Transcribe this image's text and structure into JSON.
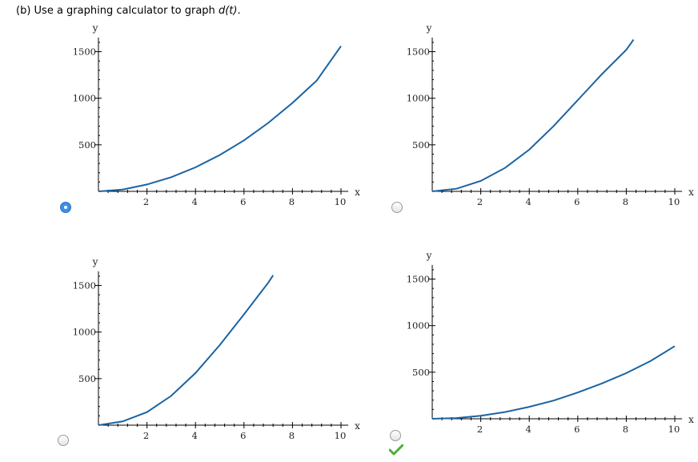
{
  "question": {
    "prefix": "(b) Use a graphing calculator to graph ",
    "func": "d(t)",
    "suffix": "."
  },
  "colors": {
    "curve": "#1a63a3",
    "radio_selected": "#3a90e8",
    "check": "#4caf3a"
  },
  "chart_data": [
    {
      "type": "line",
      "xlabel": "x",
      "ylabel": "y",
      "xlim": [
        0,
        10.3
      ],
      "ylim": [
        0,
        1600
      ],
      "x_ticks": [
        "2",
        "4",
        "6",
        "8",
        "10"
      ],
      "y_ticks": [
        "500",
        "1000",
        "1500"
      ],
      "series": [
        {
          "x": [
            0,
            1,
            2,
            3,
            4,
            5,
            6,
            7,
            8,
            9,
            10
          ],
          "y": [
            0,
            20,
            74,
            152,
            258,
            390,
            548,
            735,
            950,
            1190,
            1560
          ]
        }
      ],
      "selected": true
    },
    {
      "type": "line",
      "xlabel": "x",
      "ylabel": "y",
      "xlim": [
        0,
        10.3
      ],
      "ylim": [
        0,
        1600
      ],
      "x_ticks": [
        "2",
        "4",
        "6",
        "8",
        "10"
      ],
      "y_ticks": [
        "500",
        "1000",
        "1500"
      ],
      "series": [
        {
          "x": [
            0,
            1,
            2,
            3,
            4,
            5,
            6,
            7,
            8,
            8.3
          ],
          "y": [
            0,
            28,
            112,
            252,
            448,
            700,
            980,
            1260,
            1520,
            1630
          ]
        }
      ],
      "selected": false
    },
    {
      "type": "line",
      "xlabel": "x",
      "ylabel": "y",
      "xlim": [
        0,
        10.3
      ],
      "ylim": [
        0,
        1600
      ],
      "x_ticks": [
        "2",
        "4",
        "6",
        "8",
        "10"
      ],
      "y_ticks": [
        "500",
        "1000",
        "1500"
      ],
      "series": [
        {
          "x": [
            0,
            1,
            2,
            3,
            4,
            5,
            6,
            7,
            7.2
          ],
          "y": [
            0,
            40,
            140,
            315,
            560,
            860,
            1190,
            1530,
            1610
          ]
        }
      ],
      "selected": false
    },
    {
      "type": "line",
      "xlabel": "x",
      "ylabel": "y",
      "xlim": [
        0,
        10.3
      ],
      "ylim": [
        0,
        1600
      ],
      "x_ticks": [
        "2",
        "4",
        "6",
        "8",
        "10"
      ],
      "y_ticks": [
        "500",
        "1000",
        "1500"
      ],
      "series": [
        {
          "x": [
            0,
            1,
            2,
            3,
            4,
            5,
            6,
            7,
            8,
            9,
            10
          ],
          "y": [
            0,
            8,
            32,
            72,
            128,
            195,
            282,
            380,
            490,
            620,
            780
          ]
        }
      ],
      "selected": false,
      "correct": true
    }
  ]
}
